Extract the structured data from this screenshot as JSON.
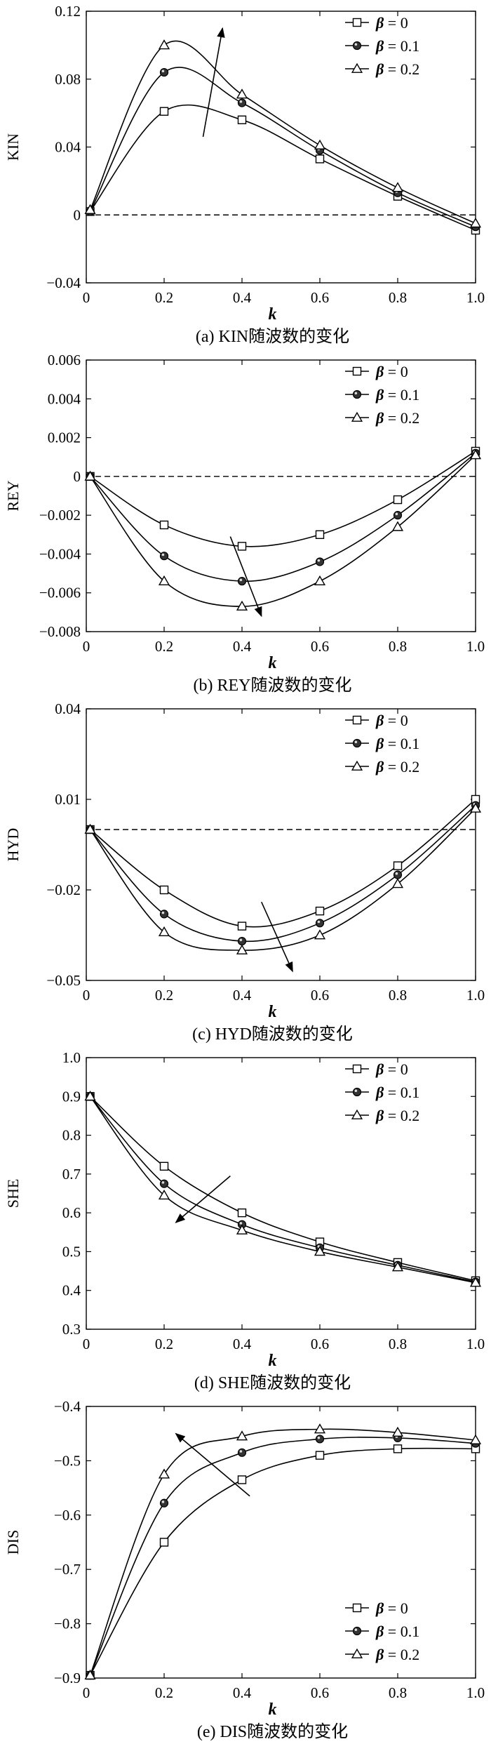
{
  "xlabel": "k",
  "legend_symbol": "β",
  "chart_data": [
    {
      "id": "kin",
      "type": "line",
      "ylabel": "KIN",
      "caption": "(a) KIN随波数的变化",
      "xlim": [
        0,
        1.0
      ],
      "ylim": [
        -0.04,
        0.12
      ],
      "xticks": [
        "0",
        "0.2",
        "0.4",
        "0.6",
        "0.8",
        "1.0"
      ],
      "yticks": [
        "-0.04",
        "0",
        "0.04",
        "0.08",
        "0.12"
      ],
      "tick_values": [
        -0.04,
        0,
        0.04,
        0.08,
        0.12
      ],
      "refline": 0,
      "legend_position": "top-right",
      "trend": {
        "from": [
          0.3,
          0.046
        ],
        "to": [
          0.35,
          0.11
        ],
        "direction": "up"
      },
      "series": [
        {
          "name": "= 0",
          "marker": "square",
          "x": [
            0.01,
            0.2,
            0.4,
            0.6,
            0.8,
            1.0
          ],
          "y": [
            0.002,
            0.061,
            0.056,
            0.033,
            0.011,
            -0.009
          ]
        },
        {
          "name": "= 0.1",
          "marker": "circle",
          "x": [
            0.01,
            0.2,
            0.4,
            0.6,
            0.8,
            1.0
          ],
          "y": [
            0.002,
            0.084,
            0.066,
            0.038,
            0.013,
            -0.007
          ]
        },
        {
          "name": "= 0.2",
          "marker": "triangle",
          "x": [
            0.01,
            0.2,
            0.4,
            0.6,
            0.8,
            1.0
          ],
          "y": [
            0.003,
            0.1,
            0.071,
            0.041,
            0.016,
            -0.005
          ]
        }
      ]
    },
    {
      "id": "rey",
      "type": "line",
      "ylabel": "REY",
      "caption": "(b) REY随波数的变化",
      "xlim": [
        0,
        1.0
      ],
      "ylim": [
        -0.008,
        0.006
      ],
      "xticks": [
        "0",
        "0.2",
        "0.4",
        "0.6",
        "0.8",
        "1.0"
      ],
      "yticks": [
        "-0.008",
        "-0.006",
        "-0.004",
        "-0.002",
        "0",
        "0.002",
        "0.004",
        "0.006"
      ],
      "tick_values": [
        -0.008,
        -0.006,
        -0.004,
        -0.002,
        0,
        0.002,
        0.004,
        0.006
      ],
      "refline": 0,
      "legend_position": "top-right",
      "trend": {
        "from": [
          0.37,
          -0.0031
        ],
        "to": [
          0.45,
          -0.0072
        ],
        "direction": "down"
      },
      "series": [
        {
          "name": "= 0",
          "marker": "square",
          "x": [
            0.01,
            0.2,
            0.4,
            0.6,
            0.8,
            1.0
          ],
          "y": [
            0.0,
            -0.0025,
            -0.0036,
            -0.003,
            -0.0012,
            0.0013
          ]
        },
        {
          "name": "= 0.1",
          "marker": "circle",
          "x": [
            0.01,
            0.2,
            0.4,
            0.6,
            0.8,
            1.0
          ],
          "y": [
            0.0,
            -0.0041,
            -0.0054,
            -0.0044,
            -0.002,
            0.0012
          ]
        },
        {
          "name": "= 0.2",
          "marker": "triangle",
          "x": [
            0.01,
            0.2,
            0.4,
            0.6,
            0.8,
            1.0
          ],
          "y": [
            0.0,
            -0.0054,
            -0.0067,
            -0.0054,
            -0.0026,
            0.0011
          ]
        }
      ]
    },
    {
      "id": "hyd",
      "type": "line",
      "ylabel": "HYD",
      "caption": "(c) HYD随波数的变化",
      "xlim": [
        0,
        1.0
      ],
      "ylim": [
        -0.05,
        0.04
      ],
      "xticks": [
        "0",
        "0.2",
        "0.4",
        "0.6",
        "0.8",
        "1.0"
      ],
      "yticks": [
        "-0.05",
        "-0.02",
        "0.01",
        "0.04"
      ],
      "tick_values": [
        -0.05,
        -0.02,
        0.01,
        0.04
      ],
      "refline": 0,
      "legend_position": "top-right",
      "trend": {
        "from": [
          0.45,
          -0.024
        ],
        "to": [
          0.53,
          -0.047
        ],
        "direction": "down"
      },
      "series": [
        {
          "name": "= 0",
          "marker": "square",
          "x": [
            0.01,
            0.2,
            0.4,
            0.6,
            0.8,
            1.0
          ],
          "y": [
            0.0,
            -0.02,
            -0.032,
            -0.027,
            -0.012,
            0.01
          ]
        },
        {
          "name": "= 0.1",
          "marker": "circle",
          "x": [
            0.01,
            0.2,
            0.4,
            0.6,
            0.8,
            1.0
          ],
          "y": [
            0.0,
            -0.028,
            -0.037,
            -0.031,
            -0.015,
            0.008
          ]
        },
        {
          "name": "= 0.2",
          "marker": "triangle",
          "x": [
            0.01,
            0.2,
            0.4,
            0.6,
            0.8,
            1.0
          ],
          "y": [
            0.0,
            -0.034,
            -0.04,
            -0.035,
            -0.018,
            0.007
          ]
        }
      ]
    },
    {
      "id": "she",
      "type": "line",
      "ylabel": "SHE",
      "caption": "(d) SHE随波数的变化",
      "xlim": [
        0,
        1.0
      ],
      "ylim": [
        0.3,
        1.0
      ],
      "xticks": [
        "0",
        "0.2",
        "0.4",
        "0.6",
        "0.8",
        "1.0"
      ],
      "yticks": [
        "0.3",
        "0.4",
        "0.5",
        "0.6",
        "0.7",
        "0.8",
        "0.9",
        "1.0"
      ],
      "tick_values": [
        0.3,
        0.4,
        0.5,
        0.6,
        0.7,
        0.8,
        0.9,
        1.0
      ],
      "refline": null,
      "legend_position": "top-right",
      "trend": {
        "from": [
          0.37,
          0.695
        ],
        "to": [
          0.23,
          0.575
        ],
        "direction": "down-left"
      },
      "series": [
        {
          "name": "= 0",
          "marker": "square",
          "x": [
            0.01,
            0.2,
            0.4,
            0.6,
            0.8,
            1.0
          ],
          "y": [
            0.9,
            0.72,
            0.6,
            0.525,
            0.472,
            0.425
          ]
        },
        {
          "name": "= 0.1",
          "marker": "circle",
          "x": [
            0.01,
            0.2,
            0.4,
            0.6,
            0.8,
            1.0
          ],
          "y": [
            0.9,
            0.675,
            0.57,
            0.51,
            0.465,
            0.422
          ]
        },
        {
          "name": "= 0.2",
          "marker": "triangle",
          "x": [
            0.01,
            0.2,
            0.4,
            0.6,
            0.8,
            1.0
          ],
          "y": [
            0.9,
            0.645,
            0.555,
            0.5,
            0.46,
            0.42
          ]
        }
      ]
    },
    {
      "id": "dis",
      "type": "line",
      "ylabel": "DIS",
      "caption": "(e) DIS随波数的变化",
      "xlim": [
        0,
        1.0
      ],
      "ylim": [
        -0.9,
        -0.4
      ],
      "xticks": [
        "0",
        "0.2",
        "0.4",
        "0.6",
        "0.8",
        "1.0"
      ],
      "yticks": [
        "-0.9",
        "-0.8",
        "-0.7",
        "-0.6",
        "-0.5",
        "-0.4"
      ],
      "tick_values": [
        -0.9,
        -0.8,
        -0.7,
        -0.6,
        -0.5,
        -0.4
      ],
      "refline": null,
      "legend_position": "bottom-right",
      "trend": {
        "from": [
          0.42,
          -0.565
        ],
        "to": [
          0.23,
          -0.45
        ],
        "direction": "up-left"
      },
      "series": [
        {
          "name": "= 0",
          "marker": "square",
          "x": [
            0.01,
            0.2,
            0.4,
            0.6,
            0.8,
            1.0
          ],
          "y": [
            -0.895,
            -0.65,
            -0.535,
            -0.49,
            -0.478,
            -0.478
          ]
        },
        {
          "name": "= 0.1",
          "marker": "circle",
          "x": [
            0.01,
            0.2,
            0.4,
            0.6,
            0.8,
            1.0
          ],
          "y": [
            -0.895,
            -0.578,
            -0.485,
            -0.46,
            -0.458,
            -0.468
          ]
        },
        {
          "name": "= 0.2",
          "marker": "triangle",
          "x": [
            0.01,
            0.2,
            0.4,
            0.6,
            0.8,
            1.0
          ],
          "y": [
            -0.895,
            -0.525,
            -0.455,
            -0.442,
            -0.448,
            -0.462
          ]
        }
      ]
    }
  ]
}
